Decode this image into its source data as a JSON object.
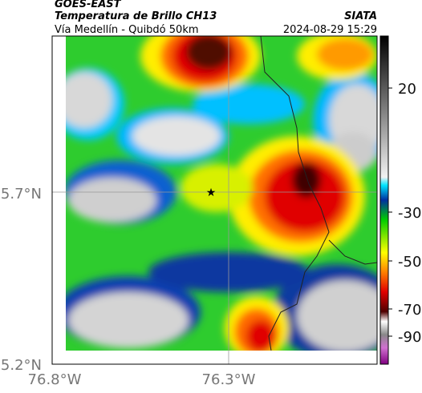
{
  "header": {
    "title": "GOES-EAST",
    "subtitle": "Temperatura de Brillo CH13",
    "source": "SIATA",
    "location": "Vía Medellín - Quibdó 50km",
    "datetime": "2024-08-29 15:29"
  },
  "map": {
    "lat_labels": [
      "5.7°N",
      "5.2°N"
    ],
    "lon_labels": [
      "76.8°W",
      "76.3°W"
    ]
  },
  "colorbar": {
    "labels": [
      "20",
      "-30",
      "-50",
      "-70",
      "-90"
    ]
  }
}
